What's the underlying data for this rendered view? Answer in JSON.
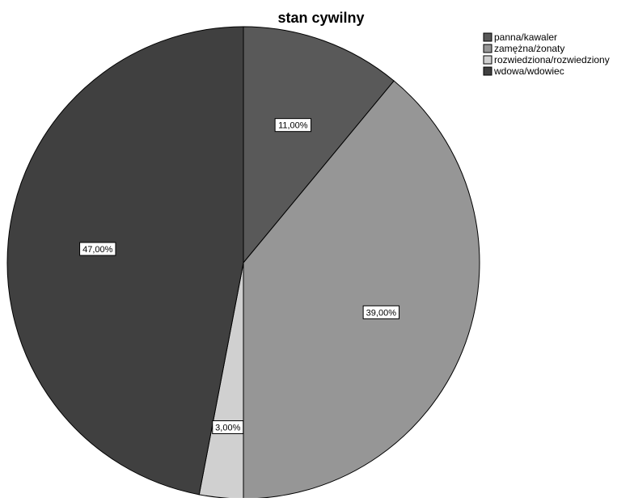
{
  "chart_data": {
    "type": "pie",
    "title": "stan cywilny",
    "slices": [
      {
        "label": "panna/kawaler",
        "value": 11.0,
        "value_label": "11,00%",
        "color": "#595959"
      },
      {
        "label": "zamężna/żonaty",
        "value": 39.0,
        "value_label": "39,00%",
        "color": "#969696"
      },
      {
        "label": "rozwiedziona/rozwiedziony",
        "value": 3.0,
        "value_label": "3,00%",
        "color": "#d0d0d0"
      },
      {
        "label": "wdowa/wdowiec",
        "value": 47.0,
        "value_label": "47,00%",
        "color": "#404040"
      }
    ],
    "start_angle": "12 o'clock",
    "direction": "clockwise",
    "legend": "top-right",
    "slice_border_color": "#000000",
    "label_box_fill": "#ffffff"
  }
}
